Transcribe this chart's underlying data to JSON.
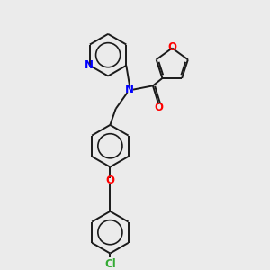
{
  "bg_color": "#ebebeb",
  "bond_color": "#1a1a1a",
  "N_color": "#0000ff",
  "O_color": "#ff0000",
  "Cl_color": "#33aa33",
  "lw": 1.4,
  "figsize": [
    3.0,
    3.0
  ],
  "dpi": 100,
  "xlim": [
    0,
    10
  ],
  "ylim": [
    0,
    10
  ]
}
